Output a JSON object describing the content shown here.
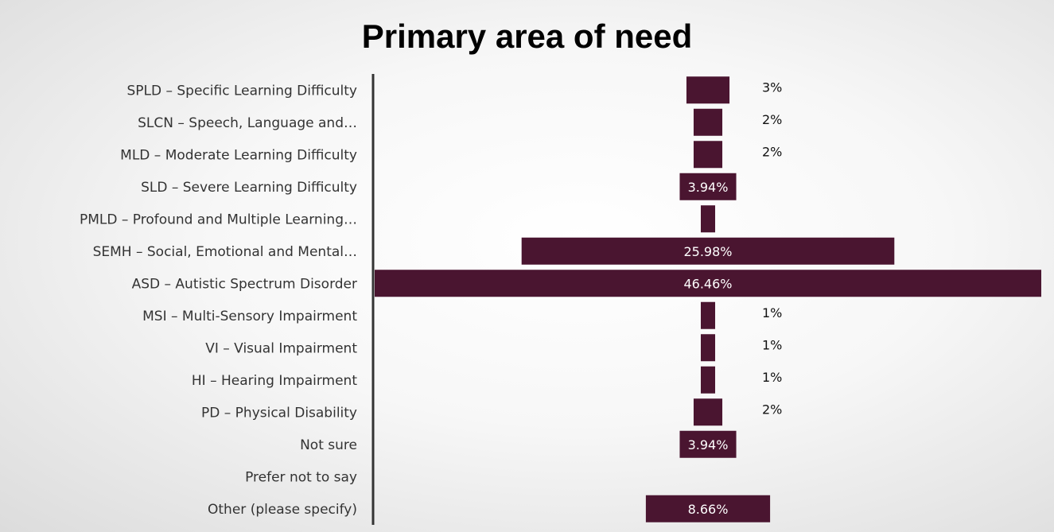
{
  "chart_data": {
    "type": "bar",
    "orientation": "horizontal",
    "title": "Primary area of need",
    "bar_color": "#4a1530",
    "categories": [
      "SPLD – Specific Learning Difficulty",
      "SLCN – Speech, Language and…",
      "MLD – Moderate Learning Difficulty",
      "SLD – Severe Learning Difficulty",
      "PMLD – Profound and Multiple Learning…",
      "SEMH – Social, Emotional and Mental…",
      "ASD – Autistic Spectrum Disorder",
      "MSI – Multi-Sensory Impairment",
      "VI – Visual Impairment",
      "HI – Hearing Impairment",
      "PD – Physical Disability",
      "Not sure",
      "Prefer not to say",
      "Other (please specify)"
    ],
    "values": [
      3,
      2,
      2,
      3.94,
      1,
      25.98,
      46.46,
      1,
      1,
      1,
      2,
      3.94,
      0,
      8.66
    ],
    "data_labels": [
      "3%",
      "2%",
      "2%",
      "3.94%",
      "",
      "25.98%",
      "46.46%",
      "1%",
      "1%",
      "1%",
      "2%",
      "3.94%",
      "",
      "8.66%"
    ],
    "label_inside": [
      false,
      false,
      false,
      true,
      false,
      true,
      true,
      false,
      false,
      false,
      false,
      true,
      false,
      true
    ],
    "axis_max": 46.46,
    "bar_alignment": "centered",
    "grid": false,
    "legend": "none"
  }
}
